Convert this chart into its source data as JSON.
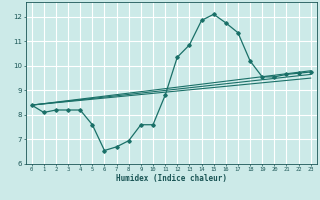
{
  "xlabel": "Humidex (Indice chaleur)",
  "bg_color": "#cceae8",
  "grid_color": "#ffffff",
  "line_color": "#1a7068",
  "xlim": [
    -0.5,
    23.5
  ],
  "ylim": [
    6,
    12.6
  ],
  "xticks": [
    0,
    1,
    2,
    3,
    4,
    5,
    6,
    7,
    8,
    9,
    10,
    11,
    12,
    13,
    14,
    15,
    16,
    17,
    18,
    19,
    20,
    21,
    22,
    23
  ],
  "yticks": [
    6,
    7,
    8,
    9,
    10,
    11,
    12
  ],
  "line1_x": [
    0,
    1,
    2,
    3,
    4,
    5,
    6,
    7,
    8,
    9,
    10,
    11,
    12,
    13,
    14,
    15,
    16,
    17,
    18,
    19,
    20,
    21,
    22,
    23
  ],
  "line1_y": [
    8.4,
    8.1,
    8.2,
    8.2,
    8.2,
    7.6,
    6.55,
    6.7,
    6.95,
    7.6,
    7.6,
    8.8,
    10.35,
    10.85,
    11.85,
    12.1,
    11.75,
    11.35,
    10.2,
    9.55,
    9.55,
    9.65,
    9.7,
    9.75
  ],
  "line2_x": [
    0,
    23
  ],
  "line2_y": [
    8.4,
    9.8
  ],
  "line3_x": [
    0,
    23
  ],
  "line3_y": [
    8.4,
    9.65
  ],
  "line4_x": [
    0,
    23
  ],
  "line4_y": [
    8.4,
    9.5
  ]
}
